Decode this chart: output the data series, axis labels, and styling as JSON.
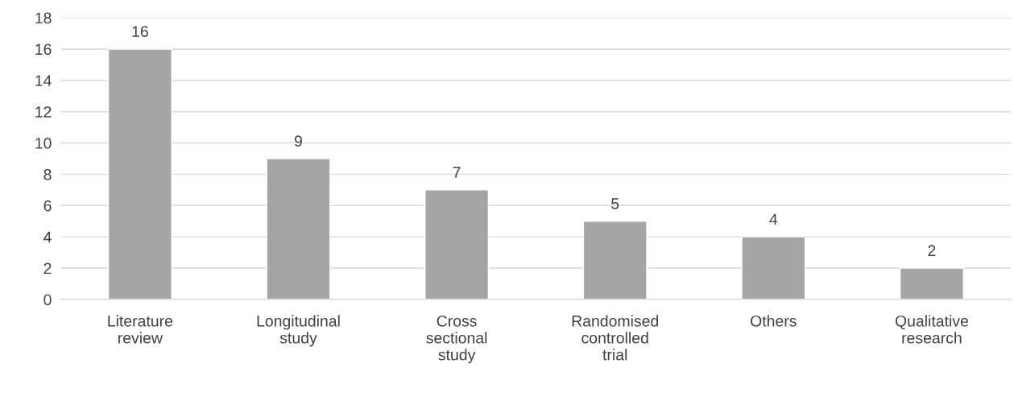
{
  "chart_data": {
    "type": "bar",
    "categories": [
      "Literature\nreview",
      "Longitudinal\nstudy",
      "Cross\nsectional\nstudy",
      "Randomised\ncontrolled\ntrial",
      "Others",
      "Qualitative\nresearch"
    ],
    "values": [
      16,
      9,
      7,
      5,
      4,
      2
    ],
    "color": "#a5a5a5",
    "ylim": [
      0,
      18
    ],
    "yticks": [
      0,
      2,
      4,
      6,
      8,
      10,
      12,
      14,
      16,
      18
    ],
    "grid": "y",
    "data_labels": true
  }
}
